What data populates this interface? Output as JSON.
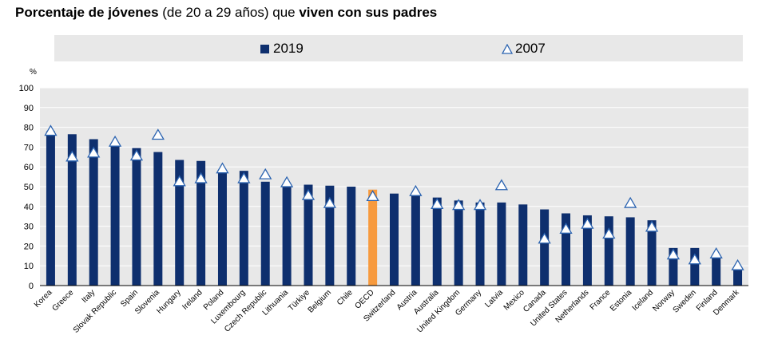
{
  "title": {
    "part1": "Porcentaje de jóvenes",
    "part2": " (de 20 a 29 años) que ",
    "part3": "viven con sus padres"
  },
  "legend": {
    "series1": "2019",
    "series2": "2007"
  },
  "colors": {
    "bar": "#0e2f6e",
    "highlight": "#f79a3e",
    "marker_stroke": "#2b63b0",
    "panel": "#e8e8e8"
  },
  "chart_data": {
    "type": "bar",
    "ylabel": "%",
    "ylim": [
      0,
      100
    ],
    "yticks": [
      0,
      10,
      20,
      30,
      40,
      50,
      60,
      70,
      80,
      90,
      100
    ],
    "grid": true,
    "legend_position": "top",
    "highlight_category": "OECD",
    "categories": [
      "Korea",
      "Greece",
      "Italy",
      "Slovak Republic",
      "Spain",
      "Slovenia",
      "Hungary",
      "Ireland",
      "Poland",
      "Luxembourg",
      "Czech Republic",
      "Lithuania",
      "Türkiye",
      "Belgium",
      "Chile",
      "OECD",
      "Switzerland",
      "Austria",
      "Australia",
      "United Kingdom",
      "Germany",
      "Latvia",
      "Mexico",
      "Canada",
      "United States",
      "Netherlands",
      "France",
      "Estonia",
      "Iceland",
      "Norway",
      "Sweden",
      "Finland",
      "Denmark"
    ],
    "series": [
      {
        "name": "2019",
        "marker": "bar",
        "values": [
          78,
          76.5,
          74,
          70.5,
          69.5,
          67.5,
          63.5,
          63,
          58,
          58,
          52.5,
          50,
          51,
          50.5,
          50,
          48.5,
          46.5,
          46,
          44.5,
          43,
          42,
          42,
          41,
          38.5,
          36.5,
          35.5,
          35,
          34.5,
          33,
          19,
          19,
          15.5,
          8
        ]
      },
      {
        "name": "2007",
        "marker": "triangle",
        "values": [
          78,
          65,
          67,
          72.5,
          65.5,
          76,
          52.5,
          54,
          59,
          54,
          56,
          52,
          45.5,
          41.5,
          null,
          45,
          null,
          47.5,
          41,
          40.5,
          40.5,
          50.5,
          null,
          23.5,
          28.5,
          31,
          26,
          41.5,
          29.5,
          15.5,
          13,
          16,
          10
        ]
      }
    ]
  }
}
